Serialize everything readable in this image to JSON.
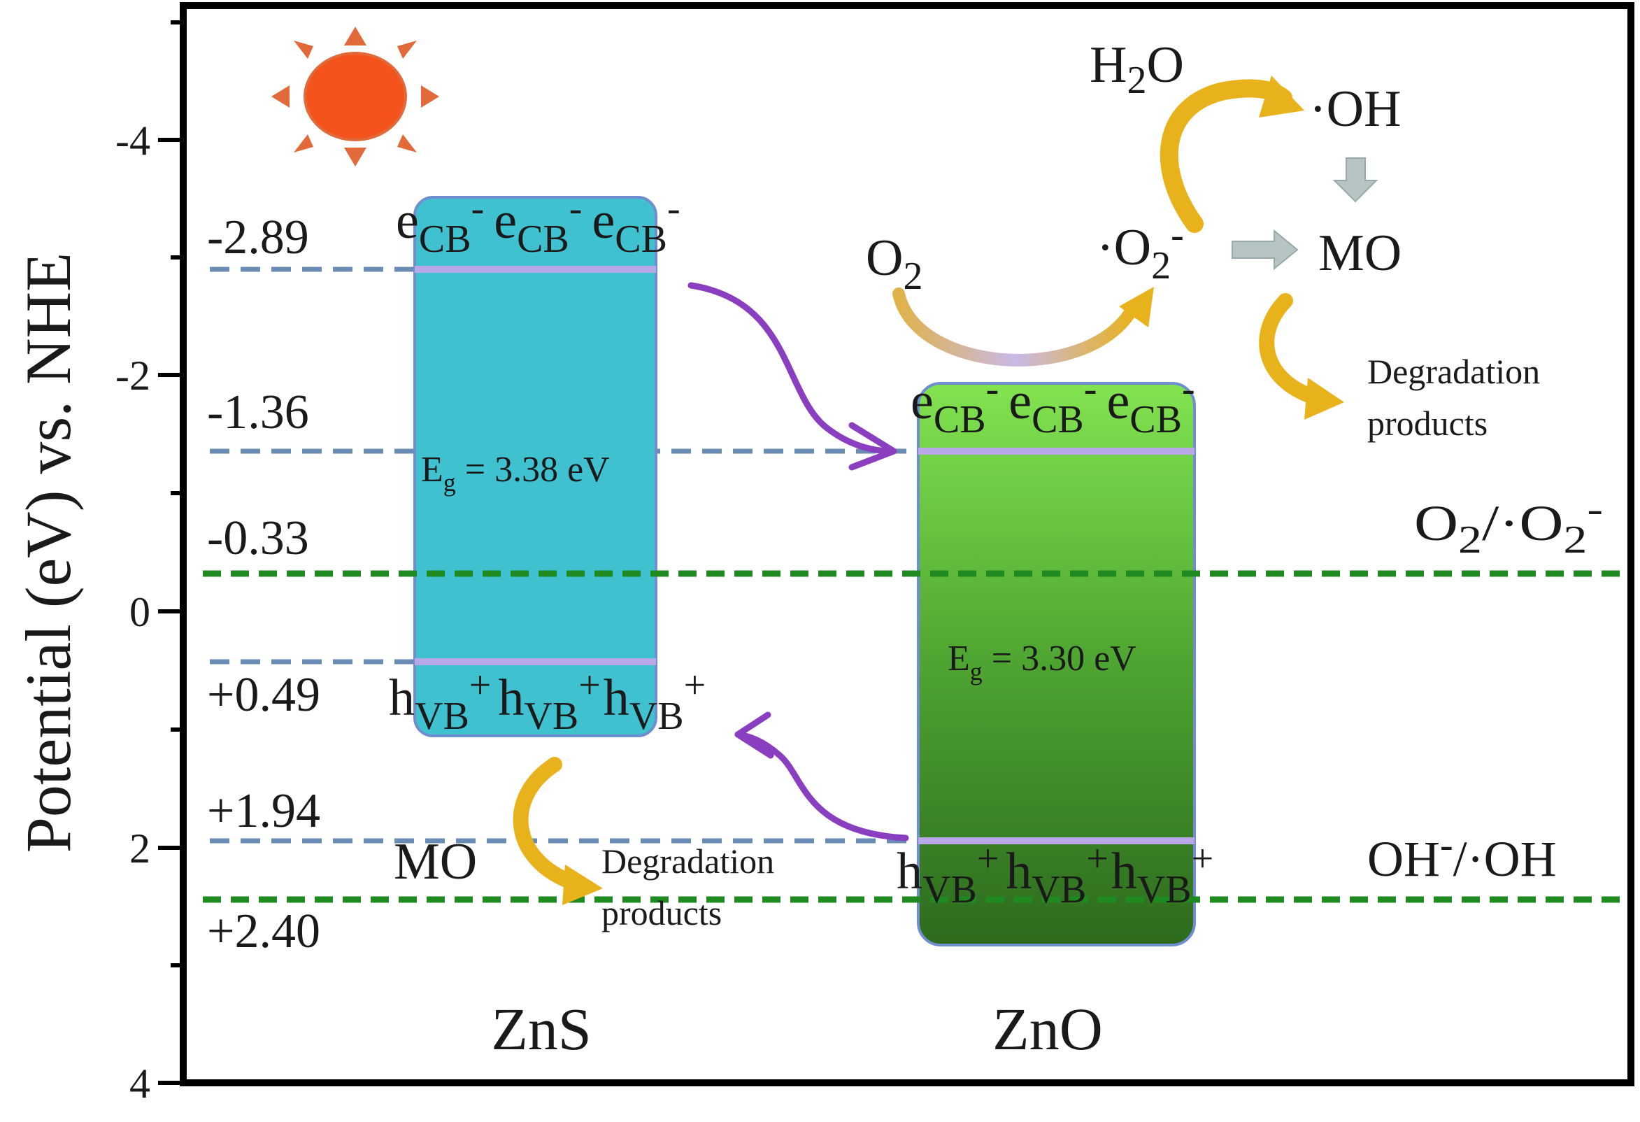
{
  "title": "",
  "y_axis": {
    "label": "Potential (eV) vs. NHE",
    "ticks": [
      "-4",
      "-2",
      "0",
      "2",
      "4"
    ]
  },
  "levels": [
    "-2.89",
    "-1.36",
    "-0.33",
    "+0.49",
    "+1.94",
    "+2.40"
  ],
  "materials": [
    {
      "name": "ZnS",
      "band_gap": "3.38 eV",
      "cb_label": "e",
      "vb_label": "h"
    },
    {
      "name": "ZnO",
      "band_gap": "3.30 eV",
      "cb_label": "e",
      "vb_label": "h"
    }
  ],
  "labels": {
    "eg_symbol": "E",
    "eg_sub": "g",
    "eg_eq": " = ",
    "cb_sub": "CB",
    "cb_sup": "-",
    "vb_sub": "VB",
    "vb_sup": "+",
    "h2o": "H",
    "h2o_sub": "2",
    "h2o_end": "O",
    "oh": "·OH",
    "o2": "O",
    "o2_sub": "2",
    "o2rad": "·O",
    "o2rad_sub": "2",
    "o2rad_sup": "-",
    "mo": "MO",
    "degradation": "Degradation",
    "products": "products"
  },
  "redox_couples": {
    "o2_couple_a": "O",
    "o2_couple_a_sub": "2",
    "o2_couple_b": "/·O",
    "o2_couple_b_sub": "2",
    "o2_couple_b_sup": "-",
    "oh_couple_a": "OH",
    "oh_couple_sup": "-",
    "oh_couple_b": "/·OH"
  },
  "colors": {
    "zns_band": "#3fc1d0",
    "zno_top": "#7ee04c",
    "zno_bottom": "#2f6d20",
    "level_line": "#6a8bb3",
    "redox_line": "#1f8a1f",
    "band_edge": "#b9a8e8",
    "transfer_arrow": "#8a3fc0",
    "reaction_arrow": "#e8b21d",
    "sun": "#f5531c",
    "sun_ray": "#e26a3a",
    "block_arrow": "#b6c4c4"
  },
  "icons": [
    "sun-icon",
    "electron-transfer-arrow",
    "hole-transfer-arrow",
    "reaction-arrow",
    "block-arrow"
  ]
}
